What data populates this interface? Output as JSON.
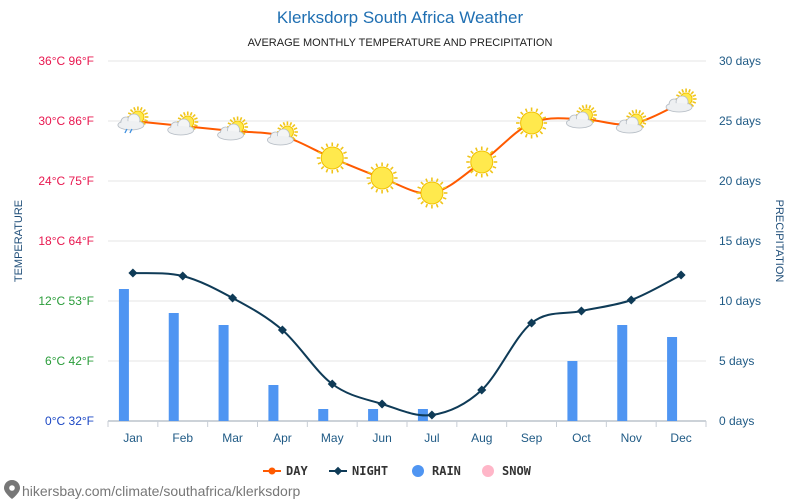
{
  "header": {
    "title": "Klerksdorp South Africa Weather",
    "subtitle": "AVERAGE MONTHLY TEMPERATURE AND PRECIPITATION"
  },
  "footer": {
    "source": "hikersbay.com/climate/southafrica/klerksdorp"
  },
  "colors": {
    "day": "#ff5a00",
    "night": "#0f3b57",
    "rain": "#4f95f2",
    "snow": "#ffb6c8",
    "left_ticks": [
      "#1b47c4",
      "#2a9d3a",
      "#2a9d3a",
      "#e8174f",
      "#e8174f",
      "#e8174f",
      "#e8174f"
    ]
  },
  "chart_data": {
    "type": "line",
    "categories": [
      "Jan",
      "Feb",
      "Mar",
      "Apr",
      "May",
      "Jun",
      "Jul",
      "Aug",
      "Sep",
      "Oct",
      "Nov",
      "Dec"
    ],
    "ylabel": "TEMPERATURE",
    "y2label": "PRECIPITATION",
    "ylim": [
      0,
      36
    ],
    "y2lim": [
      0,
      30
    ],
    "yticks": [
      {
        "value": 0,
        "label": "0°C 32°F"
      },
      {
        "value": 6,
        "label": "6°C 42°F"
      },
      {
        "value": 12,
        "label": "12°C 53°F"
      },
      {
        "value": 18,
        "label": "18°C 64°F"
      },
      {
        "value": 24,
        "label": "24°C 75°F"
      },
      {
        "value": 30,
        "label": "30°C 86°F"
      },
      {
        "value": 36,
        "label": "36°C 96°F"
      }
    ],
    "y2ticks": [
      {
        "value": 0,
        "label": "0 days"
      },
      {
        "value": 5,
        "label": "5 days"
      },
      {
        "value": 10,
        "label": "10 days"
      },
      {
        "value": 15,
        "label": "15 days"
      },
      {
        "value": 20,
        "label": "20 days"
      },
      {
        "value": 25,
        "label": "25 days"
      },
      {
        "value": 30,
        "label": "30 days"
      }
    ],
    "series": [
      {
        "name": "DAY",
        "type": "line",
        "axis": "left",
        "values": [
          30,
          29.5,
          29,
          28.5,
          26.3,
          24.3,
          22.8,
          25.9,
          29.8,
          30.2,
          29.7,
          31.8
        ]
      },
      {
        "name": "NIGHT",
        "type": "line",
        "axis": "left",
        "values": [
          14.8,
          14.5,
          12.3,
          9.1,
          3.7,
          1.7,
          0.6,
          3.1,
          9.8,
          11,
          12.1,
          14.6
        ]
      },
      {
        "name": "RAIN",
        "type": "bar",
        "axis": "right",
        "values": [
          11,
          9,
          8,
          3,
          1,
          1,
          1,
          0,
          0,
          5,
          8,
          7
        ]
      },
      {
        "name": "SNOW",
        "type": "bar",
        "axis": "right",
        "values": [
          0,
          0,
          0,
          0,
          0,
          0,
          0,
          0,
          0,
          0,
          0,
          0
        ]
      }
    ],
    "weather_icons": [
      "sun-cloud-rain",
      "sun-cloud",
      "sun-cloud",
      "sun-cloud",
      "sun",
      "sun",
      "sun",
      "sun",
      "sun",
      "sun-cloud",
      "sun-cloud",
      "sun-cloud"
    ],
    "grid": true,
    "legend": "bottom-center"
  }
}
